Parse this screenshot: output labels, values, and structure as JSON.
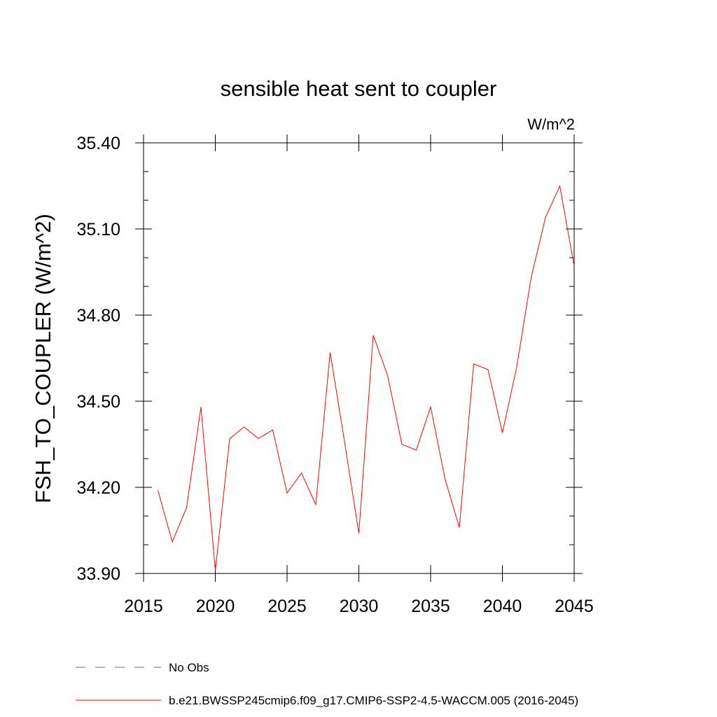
{
  "chart_data": {
    "type": "line",
    "title": "sensible heat sent to coupler",
    "units": "W/m^2",
    "ylabel": "FSH_TO_COUPLER  (W/m^2)",
    "xlabel": "",
    "xlim": [
      2015,
      2045
    ],
    "ylim": [
      33.9,
      35.4
    ],
    "xticks": [
      2015,
      2020,
      2025,
      2030,
      2035,
      2040,
      2045
    ],
    "yticks": [
      33.9,
      34.2,
      34.5,
      34.8,
      35.1,
      35.4
    ],
    "xtick_labels": [
      "2015",
      "2020",
      "2025",
      "2030",
      "2035",
      "2040",
      "2045"
    ],
    "ytick_labels": [
      "33.90",
      "34.20",
      "34.50",
      "34.80",
      "35.10",
      "35.40"
    ],
    "grid": false,
    "legend_position": "bottom",
    "series": [
      {
        "name": "b.e21.BWSSP245cmip6.f09_g17.CMIP6-SSP2-4.5-WACCM.005 (2016-2045)",
        "color": "#ff0000",
        "x": [
          2016,
          2017,
          2018,
          2019,
          2020,
          2021,
          2022,
          2023,
          2024,
          2025,
          2026,
          2027,
          2028,
          2029,
          2030,
          2031,
          2032,
          2033,
          2034,
          2035,
          2036,
          2037,
          2038,
          2039,
          2040,
          2041,
          2042,
          2043,
          2044,
          2045
        ],
        "y": [
          34.19,
          34.01,
          34.13,
          34.48,
          33.91,
          34.37,
          34.41,
          34.37,
          34.4,
          34.18,
          34.25,
          34.14,
          34.67,
          34.36,
          34.04,
          34.73,
          34.59,
          34.35,
          34.33,
          34.48,
          34.23,
          34.06,
          34.63,
          34.61,
          34.39,
          34.62,
          34.93,
          35.14,
          35.25,
          34.97
        ]
      }
    ],
    "legend": [
      {
        "label": "No Obs",
        "color": "#6666aa",
        "style": "dashed"
      },
      {
        "label": "b.e21.BWSSP245cmip6.f09_g17.CMIP6-SSP2-4.5-WACCM.005 (2016-2045)",
        "color": "#ff0000",
        "style": "solid"
      }
    ]
  }
}
